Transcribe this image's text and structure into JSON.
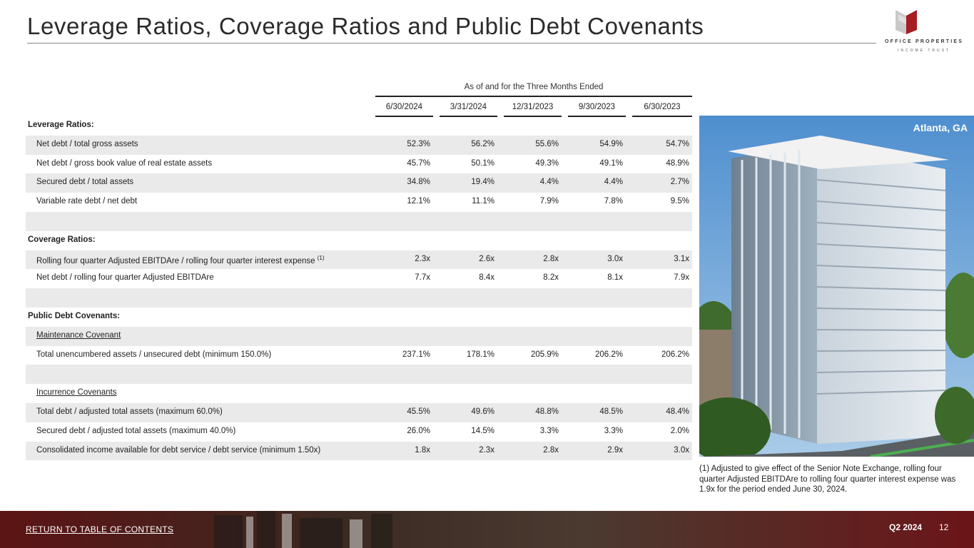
{
  "header": {
    "title": "Leverage Ratios, Coverage Ratios and Public Debt Covenants",
    "logo_line1": "OFFICE PROPERTIES",
    "logo_line2": "INCOME TRUST"
  },
  "table": {
    "period_header": "As of and for the Three Months Ended",
    "columns": [
      "6/30/2024",
      "3/31/2024",
      "12/31/2023",
      "9/30/2023",
      "6/30/2023"
    ],
    "rows": [
      {
        "label": "Leverage Ratios:",
        "values": [
          "",
          "",
          "",
          "",
          ""
        ]
      },
      {
        "label": "Net debt / total gross assets",
        "values": [
          "52.3%",
          "56.2%",
          "55.6%",
          "54.9%",
          "54.7%"
        ]
      },
      {
        "label": "Net debt / gross book value of real estate assets",
        "values": [
          "45.7%",
          "50.1%",
          "49.3%",
          "49.1%",
          "48.9%"
        ]
      },
      {
        "label": "Secured debt / total assets",
        "values": [
          "34.8%",
          "19.4%",
          "4.4%",
          "4.4%",
          "2.7%"
        ]
      },
      {
        "label": "Variable rate debt / net debt",
        "values": [
          "12.1%",
          "11.1%",
          "7.9%",
          "7.8%",
          "9.5%"
        ]
      },
      {
        "label": "",
        "values": [
          "",
          "",
          "",
          "",
          ""
        ]
      },
      {
        "label": "Coverage Ratios:",
        "values": [
          "",
          "",
          "",
          "",
          ""
        ]
      },
      {
        "label": "Rolling four quarter Adjusted EBITDAre / rolling four quarter interest expense",
        "note": "(1)",
        "values": [
          "2.3x",
          "2.6x",
          "2.8x",
          "3.0x",
          "3.1x"
        ]
      },
      {
        "label": "Net debt / rolling four quarter Adjusted EBITDAre",
        "values": [
          "7.7x",
          "8.4x",
          "8.2x",
          "8.1x",
          "7.9x"
        ]
      },
      {
        "label": "",
        "values": [
          "",
          "",
          "",
          "",
          ""
        ]
      },
      {
        "label": "Public Debt Covenants:",
        "values": [
          "",
          "",
          "",
          "",
          ""
        ]
      },
      {
        "label": "Maintenance Covenant",
        "values": [
          "",
          "",
          "",
          "",
          ""
        ]
      },
      {
        "label": "Total unencumbered assets / unsecured debt (minimum 150.0%)",
        "values": [
          "237.1%",
          "178.1%",
          "205.9%",
          "206.2%",
          "206.2%"
        ]
      },
      {
        "label": "",
        "values": [
          "",
          "",
          "",
          "",
          ""
        ]
      },
      {
        "label": "Incurrence Covenants",
        "values": [
          "",
          "",
          "",
          "",
          ""
        ]
      },
      {
        "label": "Total debt / adjusted total assets (maximum 60.0%)",
        "values": [
          "45.5%",
          "49.6%",
          "48.8%",
          "48.5%",
          "48.4%"
        ]
      },
      {
        "label": "Secured debt / adjusted total assets (maximum 40.0%)",
        "values": [
          "26.0%",
          "14.5%",
          "3.3%",
          "3.3%",
          "2.0%"
        ]
      },
      {
        "label": "Consolidated income available for debt service / debt service (minimum 1.50x)",
        "values": [
          "1.8x",
          "2.3x",
          "2.8x",
          "2.9x",
          "3.0x"
        ]
      }
    ]
  },
  "photo": {
    "caption": "Atlanta, GA"
  },
  "footnote": "(1) Adjusted to give effect of the Senior Note Exchange, rolling four quarter Adjusted EBITDAre to rolling four quarter interest expense was 1.9x for the period ended June 30, 2024.",
  "footer": {
    "link": "RETURN TO TABLE OF CONTENTS",
    "quarter": "Q2 2024",
    "page": "12"
  },
  "colors": {
    "brand_red": "#8b1a1a",
    "row_shade": "#eaeaea",
    "footer_band": "#5c1414"
  }
}
